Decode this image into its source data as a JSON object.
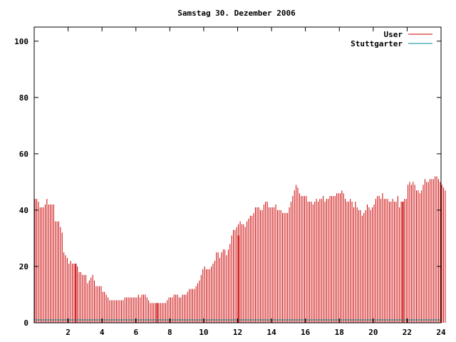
{
  "chart_data": {
    "type": "bar",
    "title": "Samstag 30. Dezember 2006",
    "xlabel": "",
    "ylabel": "",
    "xlim": [
      0,
      24
    ],
    "ylim": [
      0,
      105
    ],
    "x_ticks": [
      "2",
      "4",
      "6",
      "8",
      "10",
      "12",
      "14",
      "16",
      "18",
      "20",
      "22",
      "24"
    ],
    "y_ticks": [
      "0",
      "20",
      "40",
      "60",
      "80",
      "100"
    ],
    "grid": false,
    "legend_position": "top-right",
    "colors": {
      "user": "#cc0000",
      "stuttgarter": "#008b8b"
    },
    "bin_width_hours": 0.1,
    "series": [
      {
        "name": "User",
        "values": [
          44,
          44,
          43,
          41,
          41,
          41,
          42,
          44,
          42,
          42,
          42,
          42,
          36,
          36,
          36,
          34,
          32,
          25,
          24,
          23,
          21,
          22,
          21,
          21,
          21,
          20,
          18,
          18,
          17,
          17,
          17,
          14,
          15,
          16,
          17,
          15,
          13,
          13,
          13,
          13,
          11,
          11,
          10,
          9,
          8,
          8,
          8,
          8,
          8,
          8,
          8,
          8,
          8,
          9,
          9,
          9,
          9,
          9,
          9,
          9,
          9,
          10,
          9,
          10,
          10,
          10,
          9,
          8,
          7,
          7,
          7,
          7,
          7,
          7,
          7,
          7,
          7,
          7,
          8,
          9,
          9,
          9,
          10,
          10,
          10,
          9,
          9,
          10,
          10,
          10,
          11,
          12,
          12,
          12,
          12,
          13,
          14,
          15,
          17,
          19,
          20,
          19,
          19,
          19,
          20,
          21,
          22,
          25,
          25,
          23,
          25,
          26,
          26,
          24,
          26,
          28,
          31,
          33,
          33,
          34,
          35,
          36,
          35,
          35,
          34,
          36,
          37,
          38,
          38,
          39,
          41,
          41,
          41,
          40,
          40,
          42,
          43,
          43,
          41,
          41,
          41,
          41,
          42,
          40,
          40,
          40,
          39,
          39,
          39,
          39,
          41,
          43,
          45,
          47,
          49,
          48,
          46,
          45,
          45,
          45,
          45,
          43,
          43,
          43,
          42,
          43,
          44,
          43,
          44,
          44,
          45,
          43,
          44,
          44,
          45,
          45,
          45,
          45,
          46,
          46,
          46,
          47,
          46,
          44,
          43,
          43,
          44,
          43,
          41,
          43,
          41,
          40,
          40,
          38,
          39,
          40,
          42,
          41,
          40,
          41,
          42,
          44,
          45,
          45,
          44,
          46,
          44,
          44,
          44,
          43,
          43,
          44,
          43,
          43,
          45,
          41,
          43,
          43,
          44,
          44,
          49,
          50,
          49,
          50,
          49,
          47,
          47,
          46,
          47,
          49,
          51,
          50,
          50,
          51,
          51,
          51,
          52,
          52,
          51,
          50,
          49,
          48,
          47
        ],
        "spikes": [
          {
            "x": 2.45,
            "value": 21
          },
          {
            "x": 7.25,
            "value": 7
          },
          {
            "x": 12.05,
            "value": 31
          },
          {
            "x": 21.75,
            "value": 43
          }
        ]
      },
      {
        "name": "Stuttgarter",
        "values": [
          1
        ]
      }
    ]
  }
}
